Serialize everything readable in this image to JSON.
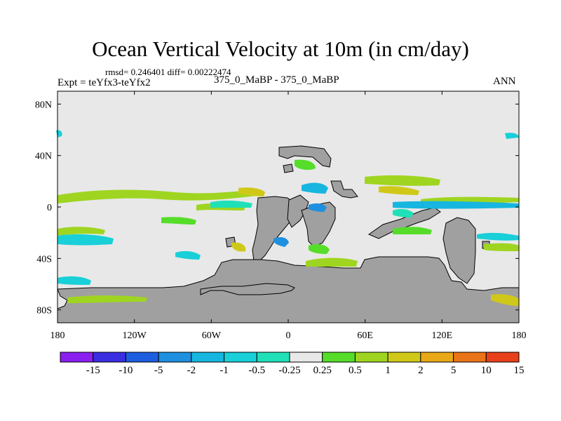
{
  "title": "Ocean Vertical Velocity at 10m (in cm/day)",
  "stats": "rmsd= 0.246401 diff= 0.00222474",
  "expt": "Expt = teYfx3-teYfx2",
  "cases": "375_0_MaBP - 375_0_MaBP",
  "season": "ANN",
  "chart_data": {
    "type": "heatmap",
    "title": "Ocean Vertical Velocity at 10m (in cm/day)",
    "xlim": [
      -180,
      180
    ],
    "ylim": [
      -90,
      90
    ],
    "x_ticks": [
      {
        "value": -180,
        "label": "180"
      },
      {
        "value": -120,
        "label": "120W"
      },
      {
        "value": -60,
        "label": "60W"
      },
      {
        "value": 0,
        "label": "0"
      },
      {
        "value": 60,
        "label": "60E"
      },
      {
        "value": 120,
        "label": "120E"
      },
      {
        "value": 180,
        "label": "180"
      }
    ],
    "y_ticks": [
      {
        "value": 80,
        "label": "80N"
      },
      {
        "value": 40,
        "label": "40N"
      },
      {
        "value": 0,
        "label": "0"
      },
      {
        "value": -40,
        "label": "40S"
      },
      {
        "value": -80,
        "label": "80S"
      }
    ],
    "colorbar": {
      "levels": [
        "-15",
        "-10",
        "-5",
        "-2",
        "-1",
        "-0.5",
        "-0.25",
        "0.25",
        "0.5",
        "1",
        "2",
        "5",
        "10",
        "15"
      ],
      "colors": [
        "#8a1ff0",
        "#3a2ee0",
        "#1d5ee0",
        "#1f8fe0",
        "#16b6e0",
        "#19cfd8",
        "#20e0b8",
        "#e8e8e8",
        "#55dd2a",
        "#9fd520",
        "#d0c818",
        "#e8a818",
        "#ea7418",
        "#e8401a"
      ]
    },
    "land_color": "#a0a0a0",
    "neutral_color": "#e8e8e8"
  }
}
